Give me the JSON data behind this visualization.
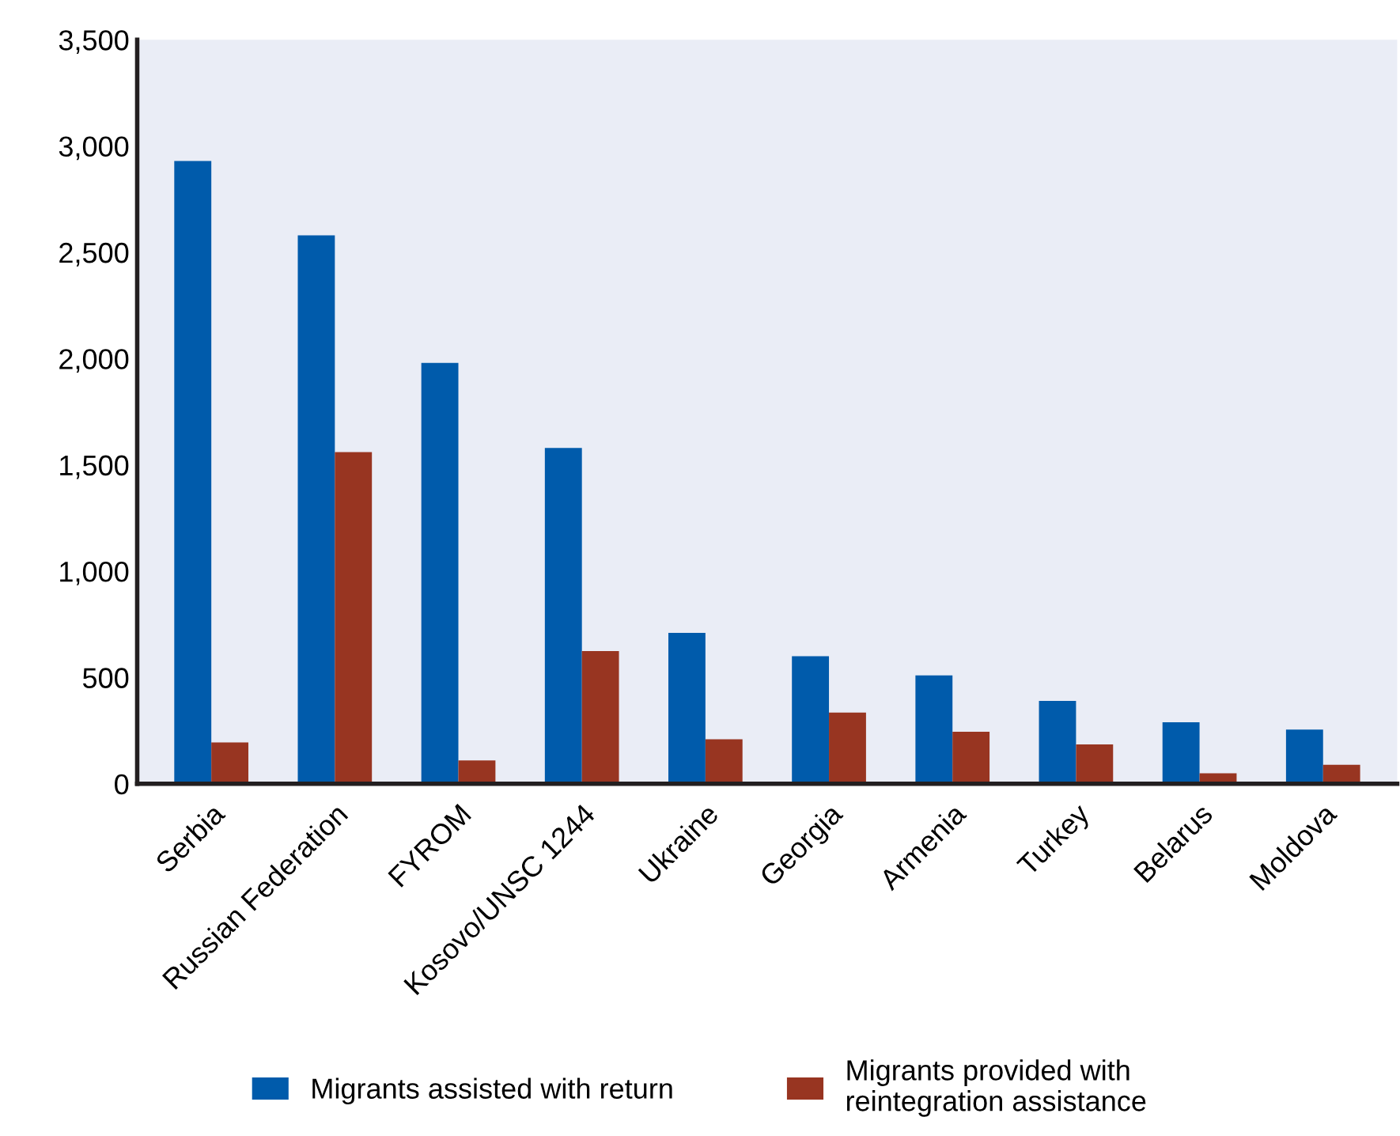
{
  "chart_data": {
    "type": "bar",
    "categories": [
      "Serbia",
      "Russian Federation",
      "FYROM",
      "Kosovo/UNSC 1244",
      "Ukraine",
      "Georgia",
      "Armenia",
      "Turkey",
      "Belarus",
      "Moldova"
    ],
    "series": [
      {
        "name": "Migrants assisted with return",
        "color": "#005bab",
        "values": [
          2930,
          2580,
          1980,
          1580,
          710,
          600,
          510,
          390,
          290,
          255
        ]
      },
      {
        "name": "Migrants provided with reintegration assistance",
        "color": "#983521",
        "values": [
          195,
          1560,
          110,
          625,
          210,
          335,
          245,
          185,
          50,
          90
        ]
      }
    ],
    "ylim": [
      0,
      3500
    ],
    "yticks": [
      {
        "value": 0,
        "label": "0"
      },
      {
        "value": 500,
        "label": "500"
      },
      {
        "value": 1000,
        "label": "1,000"
      },
      {
        "value": 1500,
        "label": "1,500"
      },
      {
        "value": 2000,
        "label": "2,000"
      },
      {
        "value": 2500,
        "label": "2,500"
      },
      {
        "value": 3000,
        "label": "3,000"
      },
      {
        "value": 3500,
        "label": "3,500"
      }
    ],
    "grid": false,
    "legend": "bottom"
  }
}
